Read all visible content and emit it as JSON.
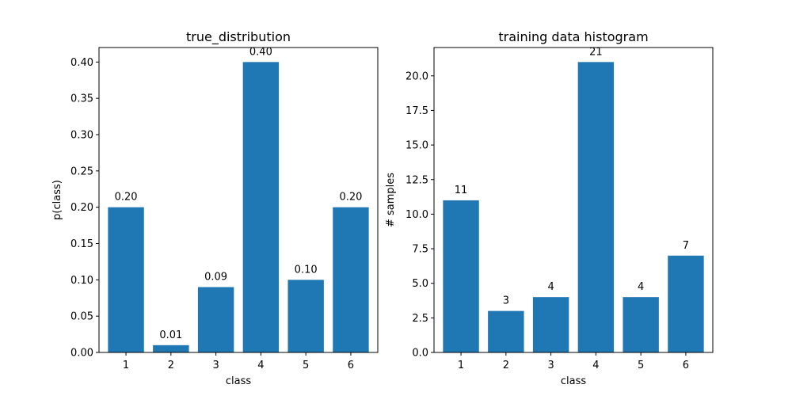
{
  "figure": {
    "background": "#ffffff",
    "bar_color": "#1f77b4"
  },
  "chart_data": [
    {
      "type": "bar",
      "title": "true_distribution",
      "xlabel": "class",
      "ylabel": "p(class)",
      "categories": [
        "1",
        "2",
        "3",
        "4",
        "5",
        "6"
      ],
      "values": [
        0.2,
        0.01,
        0.09,
        0.4,
        0.1,
        0.2
      ],
      "data_labels": [
        "0.20",
        "0.01",
        "0.09",
        "0.40",
        "0.10",
        "0.20"
      ],
      "ylim": [
        0,
        0.42
      ],
      "yticks": [
        0.0,
        0.05,
        0.1,
        0.15,
        0.2,
        0.25,
        0.3,
        0.35,
        0.4
      ],
      "ytick_labels": [
        "0.00",
        "0.05",
        "0.10",
        "0.15",
        "0.20",
        "0.25",
        "0.30",
        "0.35",
        "0.40"
      ],
      "grid": false,
      "color": "#1f77b4"
    },
    {
      "type": "bar",
      "title": "training data histogram",
      "xlabel": "class",
      "ylabel": "# samples",
      "categories": [
        "1",
        "2",
        "3",
        "4",
        "5",
        "6"
      ],
      "values": [
        11,
        3,
        4,
        21,
        4,
        7
      ],
      "data_labels": [
        "11",
        "3",
        "4",
        "21",
        "4",
        "7"
      ],
      "ylim": [
        0,
        22.05
      ],
      "yticks": [
        0.0,
        2.5,
        5.0,
        7.5,
        10.0,
        12.5,
        15.0,
        17.5,
        20.0
      ],
      "ytick_labels": [
        "0.0",
        "2.5",
        "5.0",
        "7.5",
        "10.0",
        "12.5",
        "15.0",
        "17.5",
        "20.0"
      ],
      "grid": false,
      "color": "#1f77b4"
    }
  ]
}
